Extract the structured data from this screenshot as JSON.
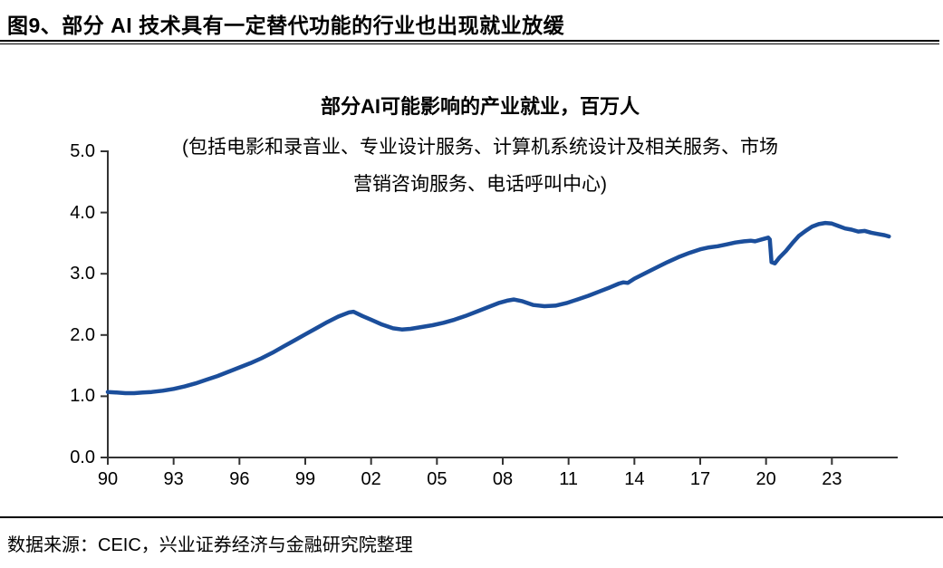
{
  "header": {
    "title": "图9、部分 AI 技术具有一定替代功能的行业也出现就业放缓"
  },
  "footer": {
    "source": "数据来源：CEIC，兴业证券经济与金融研究院整理"
  },
  "chart_data": {
    "type": "line",
    "title": "部分AI可能影响的产业就业，百万人",
    "subtitle_line1": "(包括电影和录音业、专业设计服务、计算机系统设计及相关服务、市场",
    "subtitle_line2": "营销咨询服务、电话呼叫中心)",
    "xlabel": "",
    "ylabel": "",
    "xlim": [
      1990,
      2026
    ],
    "ylim": [
      0,
      5
    ],
    "grid": false,
    "legend": "none",
    "x_ticks": [
      1990,
      1993,
      1996,
      1999,
      2002,
      2005,
      2008,
      2011,
      2014,
      2017,
      2020,
      2023
    ],
    "x_tick_labels": [
      "90",
      "93",
      "96",
      "99",
      "02",
      "05",
      "08",
      "11",
      "14",
      "17",
      "20",
      "23"
    ],
    "y_ticks": [
      0,
      1,
      2,
      3,
      4,
      5
    ],
    "y_tick_labels": [
      "0.0",
      "1.0",
      "2.0",
      "3.0",
      "4.0",
      "5.0"
    ],
    "line_color": "#1B4E9B",
    "axis_color": "#333333",
    "series": [
      {
        "name": "部分AI可能影响的产业就业（百万人）",
        "points": [
          [
            1990.0,
            1.07
          ],
          [
            1990.4,
            1.06
          ],
          [
            1990.8,
            1.05
          ],
          [
            1991.2,
            1.05
          ],
          [
            1991.6,
            1.06
          ],
          [
            1992.0,
            1.07
          ],
          [
            1992.5,
            1.09
          ],
          [
            1993.0,
            1.12
          ],
          [
            1993.5,
            1.16
          ],
          [
            1994.0,
            1.21
          ],
          [
            1994.5,
            1.27
          ],
          [
            1995.0,
            1.33
          ],
          [
            1995.5,
            1.4
          ],
          [
            1996.0,
            1.47
          ],
          [
            1996.5,
            1.54
          ],
          [
            1997.0,
            1.62
          ],
          [
            1997.5,
            1.71
          ],
          [
            1998.0,
            1.81
          ],
          [
            1998.5,
            1.91
          ],
          [
            1999.0,
            2.01
          ],
          [
            1999.5,
            2.11
          ],
          [
            2000.0,
            2.21
          ],
          [
            2000.5,
            2.3
          ],
          [
            2001.0,
            2.37
          ],
          [
            2001.2,
            2.38
          ],
          [
            2001.6,
            2.31
          ],
          [
            2002.0,
            2.25
          ],
          [
            2002.5,
            2.17
          ],
          [
            2003.0,
            2.11
          ],
          [
            2003.4,
            2.09
          ],
          [
            2003.8,
            2.1
          ],
          [
            2004.3,
            2.13
          ],
          [
            2004.8,
            2.16
          ],
          [
            2005.3,
            2.2
          ],
          [
            2005.8,
            2.25
          ],
          [
            2006.3,
            2.31
          ],
          [
            2006.8,
            2.38
          ],
          [
            2007.3,
            2.45
          ],
          [
            2007.8,
            2.52
          ],
          [
            2008.2,
            2.56
          ],
          [
            2008.5,
            2.58
          ],
          [
            2008.9,
            2.55
          ],
          [
            2009.4,
            2.49
          ],
          [
            2009.9,
            2.47
          ],
          [
            2010.4,
            2.48
          ],
          [
            2010.9,
            2.52
          ],
          [
            2011.4,
            2.58
          ],
          [
            2011.9,
            2.64
          ],
          [
            2012.4,
            2.71
          ],
          [
            2012.9,
            2.78
          ],
          [
            2013.3,
            2.84
          ],
          [
            2013.5,
            2.86
          ],
          [
            2013.7,
            2.85
          ],
          [
            2014.0,
            2.92
          ],
          [
            2014.5,
            3.01
          ],
          [
            2015.0,
            3.1
          ],
          [
            2015.5,
            3.19
          ],
          [
            2016.0,
            3.27
          ],
          [
            2016.5,
            3.34
          ],
          [
            2017.0,
            3.4
          ],
          [
            2017.4,
            3.43
          ],
          [
            2017.8,
            3.45
          ],
          [
            2018.2,
            3.48
          ],
          [
            2018.6,
            3.51
          ],
          [
            2019.0,
            3.53
          ],
          [
            2019.3,
            3.54
          ],
          [
            2019.5,
            3.53
          ],
          [
            2019.8,
            3.56
          ],
          [
            2020.1,
            3.59
          ],
          [
            2020.17,
            3.56
          ],
          [
            2020.25,
            3.19
          ],
          [
            2020.4,
            3.17
          ],
          [
            2020.6,
            3.26
          ],
          [
            2020.9,
            3.37
          ],
          [
            2021.2,
            3.5
          ],
          [
            2021.5,
            3.62
          ],
          [
            2021.8,
            3.7
          ],
          [
            2022.1,
            3.77
          ],
          [
            2022.4,
            3.81
          ],
          [
            2022.7,
            3.83
          ],
          [
            2023.0,
            3.82
          ],
          [
            2023.3,
            3.78
          ],
          [
            2023.6,
            3.74
          ],
          [
            2023.9,
            3.72
          ],
          [
            2024.2,
            3.69
          ],
          [
            2024.5,
            3.7
          ],
          [
            2024.8,
            3.67
          ],
          [
            2025.1,
            3.65
          ],
          [
            2025.4,
            3.63
          ],
          [
            2025.6,
            3.61
          ]
        ]
      }
    ]
  }
}
